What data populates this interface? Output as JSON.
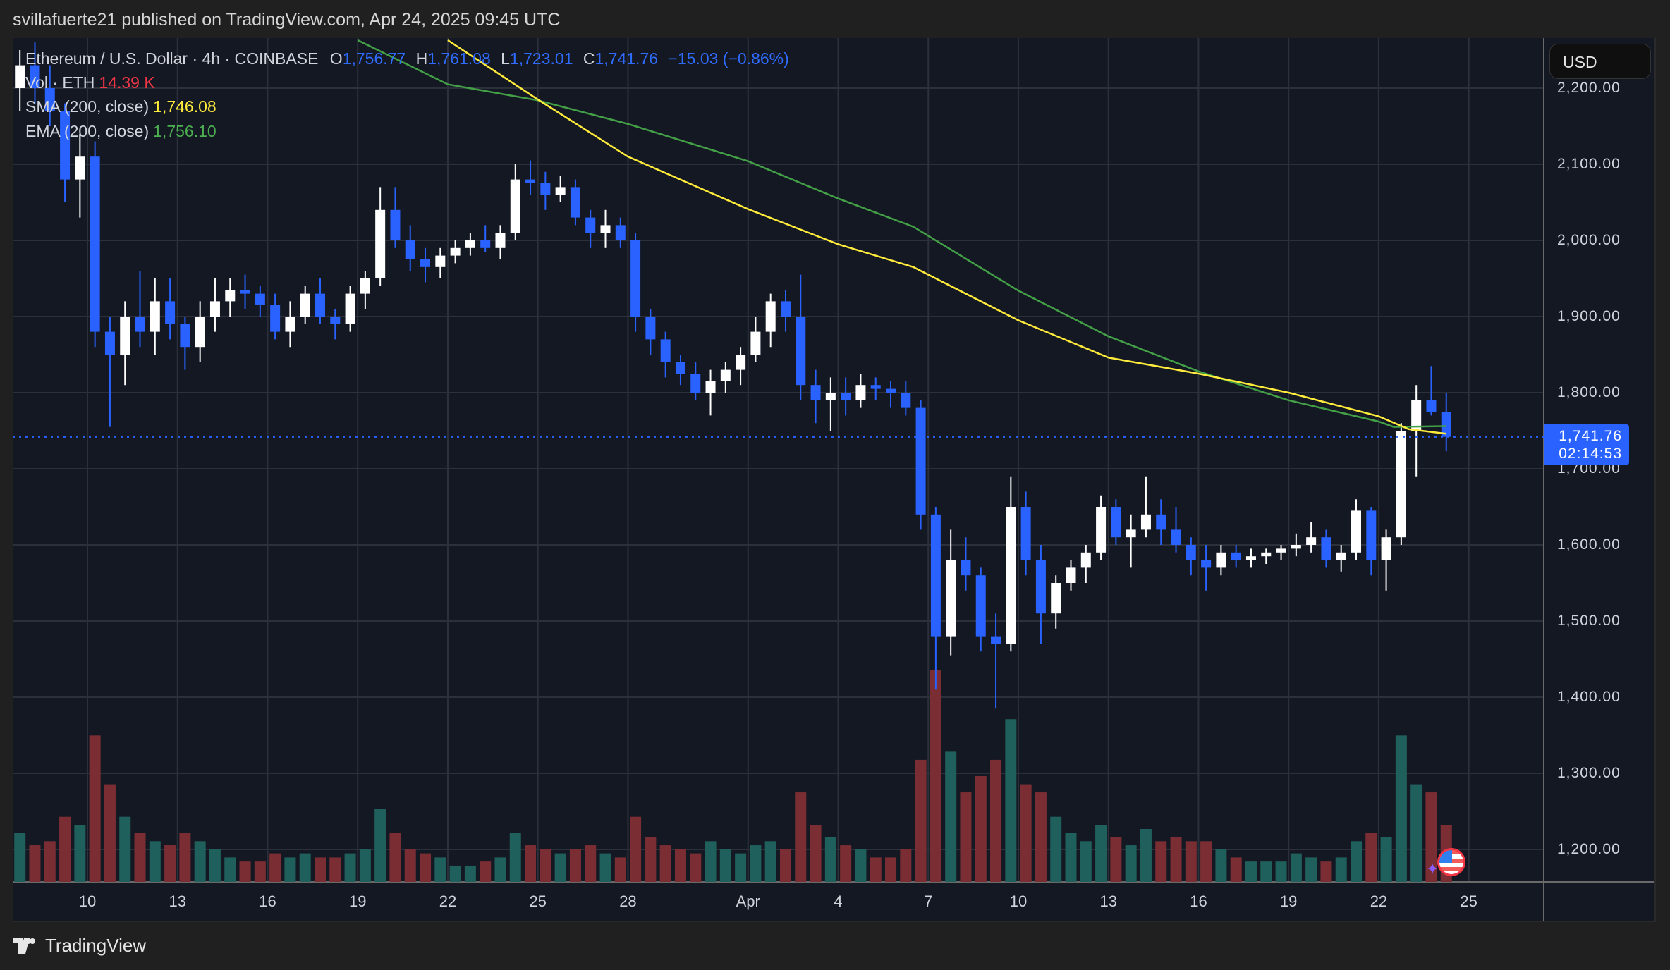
{
  "header": {
    "published": "svillafuerte21 published on TradingView.com, Apr 24, 2025 09:45 UTC"
  },
  "legend": {
    "symbol": "Ethereum / U.S. Dollar · 4h · COINBASE",
    "open_label": "O",
    "open": "1,756.77",
    "high_label": "H",
    "high": "1,761.08",
    "low_label": "L",
    "low": "1,723.01",
    "close_label": "C",
    "close": "1,741.76",
    "change": "−15.03 (−0.86%)",
    "vol_label": "Vol · ETH",
    "vol": "14.39 K",
    "sma_label": "SMA (200, close)",
    "sma": "1,746.08",
    "ema_label": "EMA (200, close)",
    "ema": "1,756.10"
  },
  "price_axis": {
    "currency": "USD",
    "ticks": [
      "2,200.00",
      "2,100.00",
      "2,000.00",
      "1,900.00",
      "1,800.00",
      "1,700.00",
      "1,600.00",
      "1,500.00",
      "1,400.00",
      "1,300.00",
      "1,200.00"
    ],
    "last_price": "1,741.76",
    "countdown": "02:14:53"
  },
  "time_axis": {
    "ticks": [
      {
        "label": "10",
        "date": "2025-03-10"
      },
      {
        "label": "13",
        "date": "2025-03-13"
      },
      {
        "label": "16",
        "date": "2025-03-16"
      },
      {
        "label": "19",
        "date": "2025-03-19"
      },
      {
        "label": "22",
        "date": "2025-03-22"
      },
      {
        "label": "25",
        "date": "2025-03-25"
      },
      {
        "label": "28",
        "date": "2025-03-28"
      },
      {
        "label": "Apr",
        "date": "2025-04-01"
      },
      {
        "label": "4",
        "date": "2025-04-04"
      },
      {
        "label": "7",
        "date": "2025-04-07"
      },
      {
        "label": "10",
        "date": "2025-04-10"
      },
      {
        "label": "13",
        "date": "2025-04-13"
      },
      {
        "label": "16",
        "date": "2025-04-16"
      },
      {
        "label": "19",
        "date": "2025-04-19"
      },
      {
        "label": "22",
        "date": "2025-04-22"
      },
      {
        "label": "25",
        "date": "2025-04-25"
      }
    ]
  },
  "colors": {
    "up": "#ffffff",
    "down": "#2962ff",
    "vol_up": "#1f5f5c",
    "vol_down": "#7a2e33",
    "sma": "#ffeb3b",
    "ema": "#43a047",
    "grid": "#2c303b",
    "last": "#2962ff"
  },
  "chart_data": {
    "type": "candlestick",
    "start": "2025-03-07T12:00",
    "interval_hours": 12,
    "ylim": [
      1160,
      2266
    ],
    "last_price": 1741.76,
    "ohlc": [
      [
        2200,
        2250,
        2170,
        2230
      ],
      [
        2230,
        2260,
        2180,
        2200
      ],
      [
        2200,
        2230,
        2150,
        2170
      ],
      [
        2170,
        2180,
        2050,
        2080
      ],
      [
        2080,
        2140,
        2030,
        2110
      ],
      [
        2110,
        2130,
        1860,
        1880
      ],
      [
        1880,
        1900,
        1755,
        1850
      ],
      [
        1850,
        1920,
        1810,
        1900
      ],
      [
        1900,
        1960,
        1860,
        1880
      ],
      [
        1880,
        1950,
        1850,
        1920
      ],
      [
        1920,
        1950,
        1870,
        1890
      ],
      [
        1890,
        1900,
        1830,
        1860
      ],
      [
        1860,
        1920,
        1840,
        1900
      ],
      [
        1900,
        1950,
        1880,
        1920
      ],
      [
        1920,
        1950,
        1900,
        1935
      ],
      [
        1935,
        1955,
        1910,
        1930
      ],
      [
        1930,
        1940,
        1900,
        1915
      ],
      [
        1915,
        1930,
        1870,
        1880
      ],
      [
        1880,
        1920,
        1860,
        1900
      ],
      [
        1900,
        1940,
        1890,
        1930
      ],
      [
        1930,
        1950,
        1890,
        1900
      ],
      [
        1900,
        1910,
        1870,
        1890
      ],
      [
        1890,
        1940,
        1880,
        1930
      ],
      [
        1930,
        1960,
        1910,
        1950
      ],
      [
        1950,
        2070,
        1940,
        2040
      ],
      [
        2040,
        2070,
        1990,
        2000
      ],
      [
        2000,
        2020,
        1960,
        1975
      ],
      [
        1975,
        1990,
        1945,
        1965
      ],
      [
        1965,
        1990,
        1950,
        1980
      ],
      [
        1980,
        2000,
        1970,
        1990
      ],
      [
        1990,
        2010,
        1980,
        2000
      ],
      [
        2000,
        2020,
        1985,
        1990
      ],
      [
        1990,
        2020,
        1975,
        2010
      ],
      [
        2010,
        2100,
        2000,
        2080
      ],
      [
        2080,
        2105,
        2060,
        2075
      ],
      [
        2075,
        2090,
        2040,
        2060
      ],
      [
        2060,
        2085,
        2050,
        2070
      ],
      [
        2070,
        2080,
        2020,
        2030
      ],
      [
        2030,
        2040,
        1990,
        2010
      ],
      [
        2010,
        2040,
        1990,
        2020
      ],
      [
        2020,
        2030,
        1990,
        2000
      ],
      [
        2000,
        2010,
        1880,
        1900
      ],
      [
        1900,
        1910,
        1850,
        1870
      ],
      [
        1870,
        1880,
        1820,
        1840
      ],
      [
        1840,
        1850,
        1810,
        1825
      ],
      [
        1825,
        1840,
        1790,
        1800
      ],
      [
        1800,
        1830,
        1770,
        1815
      ],
      [
        1815,
        1840,
        1800,
        1830
      ],
      [
        1830,
        1860,
        1810,
        1850
      ],
      [
        1850,
        1900,
        1840,
        1880
      ],
      [
        1880,
        1930,
        1860,
        1920
      ],
      [
        1920,
        1935,
        1880,
        1900
      ],
      [
        1900,
        1955,
        1790,
        1810
      ],
      [
        1810,
        1830,
        1760,
        1790
      ],
      [
        1790,
        1820,
        1750,
        1800
      ],
      [
        1800,
        1820,
        1770,
        1790
      ],
      [
        1790,
        1825,
        1780,
        1810
      ],
      [
        1810,
        1820,
        1790,
        1805
      ],
      [
        1805,
        1815,
        1780,
        1800
      ],
      [
        1800,
        1815,
        1770,
        1780
      ],
      [
        1780,
        1790,
        1620,
        1640
      ],
      [
        1640,
        1650,
        1410,
        1480
      ],
      [
        1480,
        1620,
        1455,
        1580
      ],
      [
        1580,
        1610,
        1540,
        1560
      ],
      [
        1560,
        1570,
        1460,
        1480
      ],
      [
        1480,
        1510,
        1385,
        1470
      ],
      [
        1470,
        1690,
        1460,
        1650
      ],
      [
        1650,
        1670,
        1560,
        1580
      ],
      [
        1580,
        1600,
        1470,
        1510
      ],
      [
        1510,
        1560,
        1490,
        1550
      ],
      [
        1550,
        1580,
        1540,
        1570
      ],
      [
        1570,
        1600,
        1550,
        1590
      ],
      [
        1590,
        1665,
        1580,
        1650
      ],
      [
        1650,
        1660,
        1600,
        1610
      ],
      [
        1610,
        1640,
        1570,
        1620
      ],
      [
        1620,
        1690,
        1610,
        1640
      ],
      [
        1640,
        1660,
        1600,
        1620
      ],
      [
        1620,
        1650,
        1590,
        1600
      ],
      [
        1600,
        1610,
        1560,
        1580
      ],
      [
        1580,
        1600,
        1540,
        1570
      ],
      [
        1570,
        1600,
        1560,
        1590
      ],
      [
        1590,
        1600,
        1570,
        1580
      ],
      [
        1580,
        1595,
        1570,
        1585
      ],
      [
        1585,
        1595,
        1575,
        1590
      ],
      [
        1590,
        1600,
        1580,
        1595
      ],
      [
        1595,
        1615,
        1585,
        1600
      ],
      [
        1600,
        1630,
        1590,
        1610
      ],
      [
        1610,
        1620,
        1570,
        1580
      ],
      [
        1580,
        1600,
        1565,
        1590
      ],
      [
        1590,
        1660,
        1580,
        1645
      ],
      [
        1645,
        1650,
        1560,
        1580
      ],
      [
        1580,
        1620,
        1540,
        1610
      ],
      [
        1610,
        1760,
        1600,
        1750
      ],
      [
        1750,
        1810,
        1690,
        1790
      ],
      [
        1790,
        1835,
        1770,
        1775
      ],
      [
        1775,
        1800,
        1723,
        1742
      ]
    ],
    "volume_k": [
      60,
      45,
      50,
      80,
      70,
      180,
      120,
      80,
      60,
      50,
      45,
      60,
      50,
      40,
      30,
      25,
      25,
      35,
      30,
      35,
      30,
      30,
      35,
      40,
      90,
      60,
      40,
      35,
      30,
      20,
      20,
      25,
      30,
      60,
      45,
      40,
      35,
      40,
      45,
      35,
      30,
      80,
      55,
      45,
      40,
      35,
      50,
      40,
      35,
      45,
      50,
      40,
      110,
      70,
      55,
      45,
      40,
      30,
      30,
      40,
      150,
      260,
      160,
      110,
      130,
      150,
      200,
      120,
      110,
      80,
      60,
      50,
      70,
      55,
      45,
      65,
      50,
      55,
      50,
      50,
      40,
      30,
      25,
      25,
      25,
      35,
      30,
      25,
      30,
      50,
      60,
      55,
      180,
      120,
      110,
      70
    ],
    "sma_200": [
      [
        "2025-03-22",
        2263
      ],
      [
        "2025-03-25",
        2185
      ],
      [
        "2025-03-28",
        2110
      ],
      [
        "2025-04-01",
        2041
      ],
      [
        "2025-04-04",
        1995
      ],
      [
        "2025-04-06T12:00",
        1965
      ],
      [
        "2025-04-10",
        1895
      ],
      [
        "2025-04-13",
        1846
      ],
      [
        "2025-04-16",
        1825
      ],
      [
        "2025-04-19",
        1800
      ],
      [
        "2025-04-22",
        1769
      ],
      [
        "2025-04-23",
        1752
      ],
      [
        "2025-04-24T06:00",
        1746
      ]
    ],
    "ema_200": [
      [
        "2025-03-19",
        2263
      ],
      [
        "2025-03-22",
        2205
      ],
      [
        "2025-03-25",
        2184
      ],
      [
        "2025-03-28",
        2153
      ],
      [
        "2025-04-01",
        2104
      ],
      [
        "2025-04-04",
        2055
      ],
      [
        "2025-04-06T12:00",
        2018
      ],
      [
        "2025-04-10",
        1934
      ],
      [
        "2025-04-13",
        1874
      ],
      [
        "2025-04-16",
        1828
      ],
      [
        "2025-04-19",
        1790
      ],
      [
        "2025-04-22",
        1762
      ],
      [
        "2025-04-22T12:00",
        1755
      ],
      [
        "2025-04-24T06:00",
        1756
      ]
    ]
  },
  "footer": {
    "brand": "TradingView"
  }
}
